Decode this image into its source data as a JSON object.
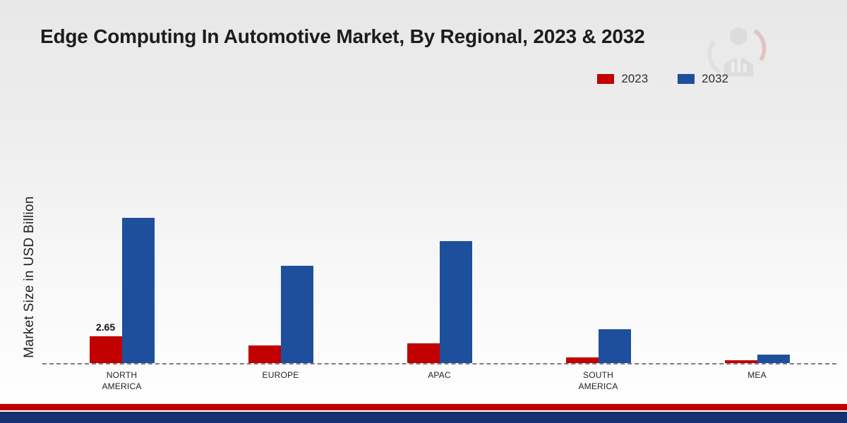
{
  "chart_data": {
    "type": "bar",
    "title": "Edge Computing In Automotive Market, By Regional, 2023 & 2032",
    "xlabel": "",
    "ylabel": "Market Size in USD Billion",
    "categories": [
      "NORTH AMERICA",
      "EUROPE",
      "APAC",
      "SOUTH AMERICA",
      "MEA"
    ],
    "series": [
      {
        "name": "2023",
        "color": "#c20000",
        "values": [
          2.65,
          1.75,
          1.9,
          0.55,
          0.3
        ]
      },
      {
        "name": "2032",
        "color": "#1e4f9c",
        "values": [
          14.2,
          9.5,
          11.9,
          3.3,
          0.85
        ]
      }
    ],
    "annotations": [
      {
        "series": "2023",
        "category": "NORTH AMERICA",
        "text": "2.65"
      }
    ],
    "ylim": [
      0,
      15
    ],
    "grid": false,
    "legend_position": "top-right",
    "baseline_style": "dashed"
  },
  "footer": {
    "red": "#c20000",
    "navy": "#16316f"
  }
}
